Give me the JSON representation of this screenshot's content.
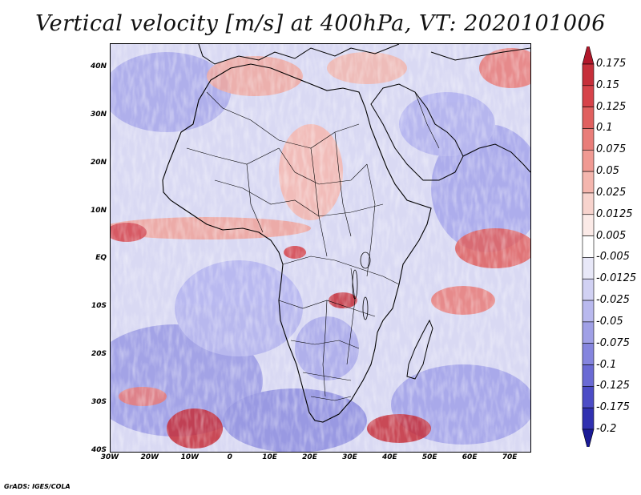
{
  "title": "Vertical velocity [m/s] at 400hPa, VT: 2020101006",
  "credit": "GrADS: IGES/COLA",
  "map": {
    "lon_range": [
      -30,
      75
    ],
    "lat_range": [
      -40,
      45
    ],
    "lat_labels": [
      "40N",
      "30N",
      "20N",
      "10N",
      "EQ",
      "10S",
      "20S",
      "30S",
      "40S"
    ],
    "lat_values": [
      40,
      30,
      20,
      10,
      0,
      -10,
      -20,
      -30,
      -40
    ],
    "lon_labels": [
      "30W",
      "20W",
      "10W",
      "0",
      "10E",
      "20E",
      "30E",
      "40E",
      "50E",
      "60E",
      "70E"
    ],
    "lon_values": [
      -30,
      -20,
      -10,
      0,
      10,
      20,
      30,
      40,
      50,
      60,
      70
    ]
  },
  "colorbar": {
    "labels": [
      "0.175",
      "0.15",
      "0.125",
      "0.1",
      "0.075",
      "0.05",
      "0.025",
      "0.0125",
      "0.005",
      "-0.005",
      "-0.0125",
      "-0.025",
      "-0.05",
      "-0.075",
      "-0.1",
      "-0.125",
      "-0.175",
      "-0.2"
    ],
    "colors": [
      "#b2182b",
      "#c62f3a",
      "#d6434a",
      "#e0605f",
      "#e97d79",
      "#f09a93",
      "#f4b6ae",
      "#f7d3cd",
      "#fbeae7",
      "#ffffff",
      "#e8e8f8",
      "#d1d1f3",
      "#b9b9ee",
      "#a0a0e6",
      "#8585de",
      "#6a6ad4",
      "#4c4cc6",
      "#3030b0",
      "#1a1a96"
    ]
  }
}
